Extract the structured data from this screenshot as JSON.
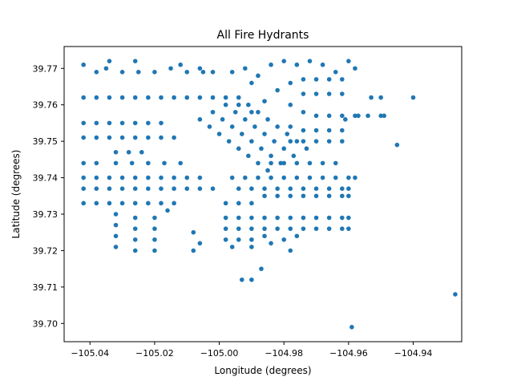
{
  "chart_data": {
    "type": "scatter",
    "title": "All Fire Hydrants",
    "xlabel": "Longitude (degrees)",
    "ylabel": "Latitude (degrees)",
    "xlim": [
      -105.048,
      -104.925
    ],
    "ylim": [
      39.695,
      39.776
    ],
    "xticks": [
      -105.04,
      -105.02,
      -105.0,
      -104.98,
      -104.96,
      -104.94
    ],
    "xtick_labels": [
      "−105.04",
      "−105.02",
      "−105.00",
      "−104.98",
      "−104.96",
      "−104.94"
    ],
    "yticks": [
      39.7,
      39.71,
      39.72,
      39.73,
      39.74,
      39.75,
      39.76,
      39.77
    ],
    "ytick_labels": [
      "39.70",
      "39.71",
      "39.72",
      "39.73",
      "39.74",
      "39.75",
      "39.76",
      "39.77"
    ],
    "grid": false,
    "marker_color": "#1f77b4",
    "series": [
      {
        "points": [
          [
            -105.042,
            39.771
          ],
          [
            -105.038,
            39.769
          ],
          [
            -105.035,
            39.77
          ],
          [
            -105.03,
            39.769
          ],
          [
            -105.025,
            39.769
          ],
          [
            -105.02,
            39.769
          ],
          [
            -105.015,
            39.77
          ],
          [
            -105.01,
            39.769
          ],
          [
            -105.005,
            39.769
          ],
          [
            -105.034,
            39.772
          ],
          [
            -105.026,
            39.772
          ],
          [
            -105.012,
            39.771
          ],
          [
            -105.006,
            39.77
          ],
          [
            -105.002,
            39.769
          ],
          [
            -105.042,
            39.762
          ],
          [
            -105.038,
            39.762
          ],
          [
            -105.034,
            39.762
          ],
          [
            -105.03,
            39.762
          ],
          [
            -105.026,
            39.762
          ],
          [
            -105.022,
            39.762
          ],
          [
            -105.018,
            39.762
          ],
          [
            -105.014,
            39.762
          ],
          [
            -105.01,
            39.762
          ],
          [
            -105.006,
            39.762
          ],
          [
            -105.002,
            39.762
          ],
          [
            -105.042,
            39.755
          ],
          [
            -105.038,
            39.755
          ],
          [
            -105.034,
            39.755
          ],
          [
            -105.03,
            39.755
          ],
          [
            -105.026,
            39.755
          ],
          [
            -105.022,
            39.755
          ],
          [
            -105.018,
            39.755
          ],
          [
            -105.042,
            39.751
          ],
          [
            -105.038,
            39.751
          ],
          [
            -105.034,
            39.751
          ],
          [
            -105.03,
            39.751
          ],
          [
            -105.026,
            39.751
          ],
          [
            -105.022,
            39.751
          ],
          [
            -105.018,
            39.751
          ],
          [
            -105.014,
            39.751
          ],
          [
            -105.032,
            39.747
          ],
          [
            -105.028,
            39.747
          ],
          [
            -105.024,
            39.747
          ],
          [
            -105.042,
            39.744
          ],
          [
            -105.038,
            39.744
          ],
          [
            -105.032,
            39.744
          ],
          [
            -105.027,
            39.744
          ],
          [
            -105.022,
            39.744
          ],
          [
            -105.017,
            39.744
          ],
          [
            -105.012,
            39.744
          ],
          [
            -105.042,
            39.74
          ],
          [
            -105.038,
            39.74
          ],
          [
            -105.034,
            39.74
          ],
          [
            -105.03,
            39.74
          ],
          [
            -105.026,
            39.74
          ],
          [
            -105.022,
            39.74
          ],
          [
            -105.018,
            39.74
          ],
          [
            -105.014,
            39.74
          ],
          [
            -105.01,
            39.74
          ],
          [
            -105.006,
            39.74
          ],
          [
            -105.042,
            39.737
          ],
          [
            -105.038,
            39.737
          ],
          [
            -105.034,
            39.737
          ],
          [
            -105.03,
            39.737
          ],
          [
            -105.026,
            39.737
          ],
          [
            -105.022,
            39.737
          ],
          [
            -105.018,
            39.737
          ],
          [
            -105.014,
            39.737
          ],
          [
            -105.01,
            39.737
          ],
          [
            -105.006,
            39.737
          ],
          [
            -105.002,
            39.737
          ],
          [
            -105.042,
            39.733
          ],
          [
            -105.038,
            39.733
          ],
          [
            -105.034,
            39.733
          ],
          [
            -105.03,
            39.733
          ],
          [
            -105.026,
            39.733
          ],
          [
            -105.022,
            39.733
          ],
          [
            -105.018,
            39.733
          ],
          [
            -105.014,
            39.733
          ],
          [
            -105.032,
            39.73
          ],
          [
            -105.032,
            39.727
          ],
          [
            -105.032,
            39.724
          ],
          [
            -105.032,
            39.721
          ],
          [
            -105.026,
            39.729
          ],
          [
            -105.026,
            39.726
          ],
          [
            -105.026,
            39.723
          ],
          [
            -105.026,
            39.72
          ],
          [
            -105.02,
            39.729
          ],
          [
            -105.02,
            39.726
          ],
          [
            -105.02,
            39.723
          ],
          [
            -105.02,
            39.72
          ],
          [
            -105.016,
            39.731
          ],
          [
            -105.008,
            39.725
          ],
          [
            -105.006,
            39.722
          ],
          [
            -105.008,
            39.72
          ],
          [
            -104.996,
            39.769
          ],
          [
            -104.992,
            39.77
          ],
          [
            -104.99,
            39.766
          ],
          [
            -104.988,
            39.768
          ],
          [
            -104.984,
            39.771
          ],
          [
            -104.98,
            39.772
          ],
          [
            -104.976,
            39.771
          ],
          [
            -104.972,
            39.772
          ],
          [
            -104.968,
            39.771
          ],
          [
            -104.964,
            39.769
          ],
          [
            -104.96,
            39.772
          ],
          [
            -104.958,
            39.77
          ],
          [
            -104.998,
            39.762
          ],
          [
            -104.994,
            39.76
          ],
          [
            -104.99,
            39.758
          ],
          [
            -104.986,
            39.761
          ],
          [
            -104.982,
            39.764
          ],
          [
            -104.978,
            39.766
          ],
          [
            -104.974,
            39.767
          ],
          [
            -104.97,
            39.767
          ],
          [
            -104.966,
            39.767
          ],
          [
            -104.962,
            39.767
          ],
          [
            -104.974,
            39.763
          ],
          [
            -104.97,
            39.763
          ],
          [
            -104.966,
            39.763
          ],
          [
            -104.962,
            39.763
          ],
          [
            -105.006,
            39.756
          ],
          [
            -105.003,
            39.754
          ],
          [
            -105.0,
            39.752
          ],
          [
            -104.997,
            39.75
          ],
          [
            -104.994,
            39.748
          ],
          [
            -104.991,
            39.746
          ],
          [
            -104.988,
            39.744
          ],
          [
            -104.985,
            39.742
          ],
          [
            -105.002,
            39.758
          ],
          [
            -104.999,
            39.756
          ],
          [
            -104.996,
            39.754
          ],
          [
            -104.993,
            39.752
          ],
          [
            -104.99,
            39.75
          ],
          [
            -104.987,
            39.748
          ],
          [
            -104.984,
            39.746
          ],
          [
            -104.981,
            39.744
          ],
          [
            -104.998,
            39.76
          ],
          [
            -104.995,
            39.758
          ],
          [
            -104.992,
            39.756
          ],
          [
            -104.989,
            39.754
          ],
          [
            -104.986,
            39.752
          ],
          [
            -104.983,
            39.75
          ],
          [
            -104.98,
            39.748
          ],
          [
            -104.977,
            39.746
          ],
          [
            -104.994,
            39.762
          ],
          [
            -104.991,
            39.76
          ],
          [
            -104.988,
            39.758
          ],
          [
            -104.985,
            39.756
          ],
          [
            -104.982,
            39.754
          ],
          [
            -104.979,
            39.752
          ],
          [
            -104.976,
            39.75
          ],
          [
            -104.973,
            39.748
          ],
          [
            -104.978,
            39.76
          ],
          [
            -104.974,
            39.758
          ],
          [
            -104.97,
            39.757
          ],
          [
            -104.966,
            39.757
          ],
          [
            -104.962,
            39.757
          ],
          [
            -104.958,
            39.757
          ],
          [
            -104.954,
            39.757
          ],
          [
            -104.95,
            39.757
          ],
          [
            -104.978,
            39.754
          ],
          [
            -104.974,
            39.753
          ],
          [
            -104.97,
            39.753
          ],
          [
            -104.966,
            39.753
          ],
          [
            -104.962,
            39.753
          ],
          [
            -104.978,
            39.75
          ],
          [
            -104.974,
            39.75
          ],
          [
            -104.97,
            39.75
          ],
          [
            -104.966,
            39.75
          ],
          [
            -104.962,
            39.75
          ],
          [
            -104.984,
            39.744
          ],
          [
            -104.98,
            39.744
          ],
          [
            -104.976,
            39.744
          ],
          [
            -104.972,
            39.744
          ],
          [
            -104.968,
            39.744
          ],
          [
            -104.964,
            39.744
          ],
          [
            -104.996,
            39.74
          ],
          [
            -104.992,
            39.74
          ],
          [
            -104.988,
            39.74
          ],
          [
            -104.984,
            39.74
          ],
          [
            -104.98,
            39.74
          ],
          [
            -104.976,
            39.74
          ],
          [
            -104.972,
            39.74
          ],
          [
            -104.968,
            39.74
          ],
          [
            -104.964,
            39.74
          ],
          [
            -104.96,
            39.74
          ],
          [
            -104.958,
            39.74
          ],
          [
            -104.994,
            39.737
          ],
          [
            -104.99,
            39.737
          ],
          [
            -104.986,
            39.737
          ],
          [
            -104.982,
            39.737
          ],
          [
            -104.978,
            39.737
          ],
          [
            -104.974,
            39.737
          ],
          [
            -104.97,
            39.737
          ],
          [
            -104.966,
            39.737
          ],
          [
            -104.962,
            39.737
          ],
          [
            -104.96,
            39.737
          ],
          [
            -104.986,
            39.735
          ],
          [
            -104.982,
            39.735
          ],
          [
            -104.978,
            39.735
          ],
          [
            -104.974,
            39.735
          ],
          [
            -104.97,
            39.735
          ],
          [
            -104.966,
            39.735
          ],
          [
            -104.962,
            39.735
          ],
          [
            -104.96,
            39.735
          ],
          [
            -104.998,
            39.733
          ],
          [
            -104.994,
            39.733
          ],
          [
            -104.99,
            39.733
          ],
          [
            -104.998,
            39.729
          ],
          [
            -104.994,
            39.729
          ],
          [
            -104.99,
            39.729
          ],
          [
            -104.986,
            39.729
          ],
          [
            -104.982,
            39.729
          ],
          [
            -104.978,
            39.729
          ],
          [
            -104.974,
            39.729
          ],
          [
            -104.97,
            39.729
          ],
          [
            -104.966,
            39.729
          ],
          [
            -104.962,
            39.729
          ],
          [
            -104.96,
            39.729
          ],
          [
            -104.998,
            39.726
          ],
          [
            -104.994,
            39.726
          ],
          [
            -104.99,
            39.726
          ],
          [
            -104.986,
            39.726
          ],
          [
            -104.982,
            39.726
          ],
          [
            -104.978,
            39.726
          ],
          [
            -104.974,
            39.726
          ],
          [
            -104.97,
            39.726
          ],
          [
            -104.966,
            39.726
          ],
          [
            -104.962,
            39.726
          ],
          [
            -104.96,
            39.726
          ],
          [
            -104.998,
            39.723
          ],
          [
            -104.994,
            39.723
          ],
          [
            -104.99,
            39.723
          ],
          [
            -104.986,
            39.724
          ],
          [
            -104.98,
            39.723
          ],
          [
            -104.976,
            39.724
          ],
          [
            -104.996,
            39.721
          ],
          [
            -104.99,
            39.721
          ],
          [
            -104.984,
            39.722
          ],
          [
            -104.978,
            39.72
          ],
          [
            -104.961,
            39.756
          ],
          [
            -104.957,
            39.757
          ],
          [
            -104.953,
            39.762
          ],
          [
            -104.95,
            39.762
          ],
          [
            -104.949,
            39.757
          ],
          [
            -104.945,
            39.749
          ],
          [
            -104.94,
            39.762
          ],
          [
            -104.993,
            39.712
          ],
          [
            -104.99,
            39.712
          ],
          [
            -104.987,
            39.715
          ],
          [
            -104.959,
            39.699
          ],
          [
            -104.927,
            39.708
          ]
        ]
      }
    ]
  }
}
